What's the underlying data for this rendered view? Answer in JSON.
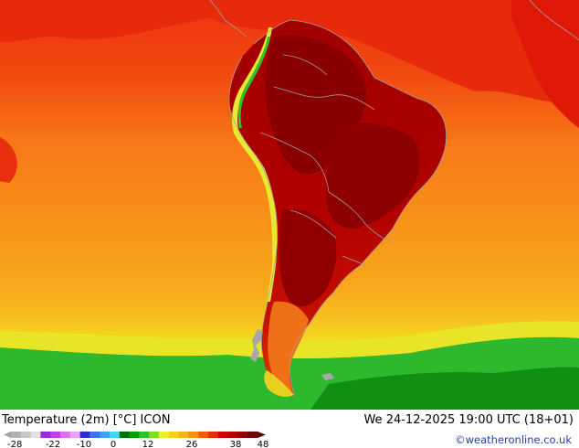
{
  "footer": {
    "title": "Temperature (2m) [°C] ICON",
    "datetime": "We 24-12-2025 19:00 UTC (18+01)",
    "credit": "©weatheronline.co.uk"
  },
  "legend": {
    "ticks": [
      "-28",
      "-22",
      "-10",
      "0",
      "12",
      "26",
      "38",
      "48"
    ],
    "colors": [
      "#b0b0b0",
      "#c8c8c8",
      "#e0e0e0",
      "#9b2bd6",
      "#c040e8",
      "#e070f0",
      "#f0a0f8",
      "#3030c8",
      "#4070f0",
      "#40a0f8",
      "#40d8f8",
      "#007000",
      "#00a000",
      "#30c030",
      "#80e020",
      "#e8f030",
      "#f8d020",
      "#f8b020",
      "#f89010",
      "#f06000",
      "#e03000",
      "#d00000",
      "#b00000",
      "#900000",
      "#700000"
    ]
  },
  "map": {
    "colors": {
      "ocean_north": "#f04a10",
      "ocean_mid": "#f88c14",
      "ocean_south": "#f8b020",
      "cold_band": "#f0e020",
      "green_band": "#20b020",
      "dark_green": "#008000",
      "land_hot": "#c00000",
      "land_hottest": "#8c0000",
      "borders": "#a0a0a0"
    }
  }
}
